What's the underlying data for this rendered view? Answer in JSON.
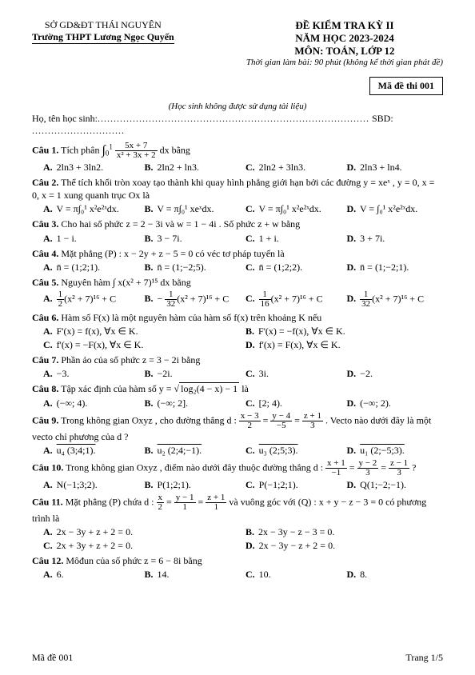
{
  "header": {
    "dept": "SỞ GD&ĐT THÁI NGUYÊN",
    "school": "Trường THPT Lương Ngọc Quyến",
    "exam_title": "ĐỀ KIỂM TRA KỲ II",
    "year": "NĂM HỌC 2023-2024",
    "subject": "MÔN: TOÁN, LỚP 12",
    "time": "Thời gian làm bài: 90 phút (không kể thời gian phát đề)",
    "exam_code_label": "Mã đề thi 001",
    "note": "(Học sinh không được sử dụng tài liệu)",
    "student_label": "Họ, tên học sinh:",
    "sbd_label": "SBD:"
  },
  "q1": {
    "label": "Câu 1.",
    "text_a": "Tích phân ",
    "text_b": " bằng",
    "int_low": "0",
    "int_up": "1",
    "num": "5x + 7",
    "den": "x² + 3x + 2",
    "A": "2ln3 + 3ln2.",
    "B": "2ln2 + ln3.",
    "C": "2ln2 + 3ln3.",
    "D": "2ln3 + ln4."
  },
  "q2": {
    "label": "Câu 2.",
    "text": "Thể tích khối tròn xoay tạo thành khi quay hình phẳng giới hạn bởi các đường  y = xeˣ ,  y = 0, x = 0,  x = 1  xung quanh trục  Ox  là",
    "A": "V = π∫₀¹ x²e²ˣdx.",
    "B": "V = π∫₀¹ xeˣdx.",
    "C": "V = π∫₀¹ x²e²ˣdx.",
    "D": "V = ∫₀¹ x²e²ˣdx."
  },
  "q3": {
    "label": "Câu 3.",
    "text": "Cho hai số phức  z = 2 − 3i  và  w = 1 − 4i . Số phức  z + w  bằng",
    "A": "1 − i.",
    "B": "3 − 7i.",
    "C": "1 + i.",
    "D": "3 + 7i."
  },
  "q4": {
    "label": "Câu 4.",
    "text": "Mặt phẳng  (P) : x − 2y + z − 5 = 0  có véc tơ pháp tuyến là",
    "A": "n̄ = (1;2;1).",
    "B": "n̄ = (1;−2;5).",
    "C": "n̄ = (1;2;2).",
    "D": "n̄ = (1;−2;1)."
  },
  "q5": {
    "label": "Câu 5.",
    "text": "Nguyên hàm  ∫ x(x² + 7)¹⁵ dx  bằng",
    "A_num": "1",
    "A_den": "2",
    "A_tail": "(x² + 7)¹⁶ + C",
    "B_num": "1",
    "B_den": "32",
    "B_tail": "(x² + 7)¹⁶ + C",
    "C_num": "1",
    "C_den": "16",
    "C_tail": "(x² + 7)¹⁶ + C",
    "D_num": "1",
    "D_den": "32",
    "D_tail": "(x² + 7)¹⁶ + C",
    "B_neg": "− "
  },
  "q6": {
    "label": "Câu 6.",
    "text": "Hàm số  F(x)  là một nguyên hàm của hàm số  f(x)  trên khoảng  K  nếu",
    "A": "F'(x) = f(x), ∀x ∈ K.",
    "B": "F'(x) = −f(x), ∀x ∈ K.",
    "C": "f'(x) = −F(x), ∀x ∈ K.",
    "D": "f'(x) = F(x), ∀x ∈ K."
  },
  "q7": {
    "label": "Câu 7.",
    "text": "Phần ảo của số phức  z = 3 − 2i  bằng",
    "A": "−3.",
    "B": "−2i.",
    "C": "3i.",
    "D": "−2."
  },
  "q8": {
    "label": "Câu 8.",
    "text_a": "Tập xác định của hàm số  y = ",
    "sqrt": "log₂(4 − x) − 1",
    "text_b": "  là",
    "A": "(−∞; 4).",
    "B": "(−∞; 2].",
    "C": "[2; 4).",
    "D": "(−∞; 2)."
  },
  "q9": {
    "label": "Câu 9.",
    "text_a": "Trong không gian  Oxyz , cho đường thẳng  d : ",
    "f1n": "x − 3",
    "f1d": "2",
    "f2n": "y − 4",
    "f2d": "−5",
    "f3n": "z + 1",
    "f3d": "3",
    "text_b": " . Vecto nào dưới đây là một vecto chỉ phương của  d ?",
    "A": "u₄ (3;4;1).",
    "B": "u₂ (2;4;−1).",
    "C": "u₃ (2;5;3).",
    "D": "u₁ (2;−5;3)."
  },
  "q10": {
    "label": "Câu 10.",
    "text_a": "Trong không gian  Oxyz , điểm nào dưới đây thuộc đường thẳng  d : ",
    "f1n": "x + 1",
    "f1d": "−1",
    "f2n": "y − 2",
    "f2d": "3",
    "f3n": "z − 1",
    "f3d": "3",
    "text_b": " ?",
    "A": "N(−1;3;2).",
    "B": "P(1;2;1).",
    "C": "P(−1;2;1).",
    "D": "Q(1;−2;−1)."
  },
  "q11": {
    "label": "Câu 11.",
    "text_a": "Mặt phẳng (P) chứa  d : ",
    "f1n": "x",
    "f1d": "2",
    "f2n": "y − 1",
    "f2d": "1",
    "f3n": "z + 1",
    "f3d": "1",
    "text_b": "  và vuông góc với (Q) : x + y − z − 3 = 0  có phương trình là",
    "A": "2x − 3y + z + 2 = 0.",
    "B": "2x − 3y − z − 3 = 0.",
    "C": "2x + 3y + z + 2 = 0.",
    "D": "2x − 3y − z + 2 = 0."
  },
  "q12": {
    "label": "Câu 12.",
    "text": "Môđun của số phức  z = 6 − 8i  bằng",
    "A": "6.",
    "B": "14.",
    "C": "10.",
    "D": "8."
  },
  "footer": {
    "left": "Mã đề 001",
    "right": "Trang 1/5"
  }
}
